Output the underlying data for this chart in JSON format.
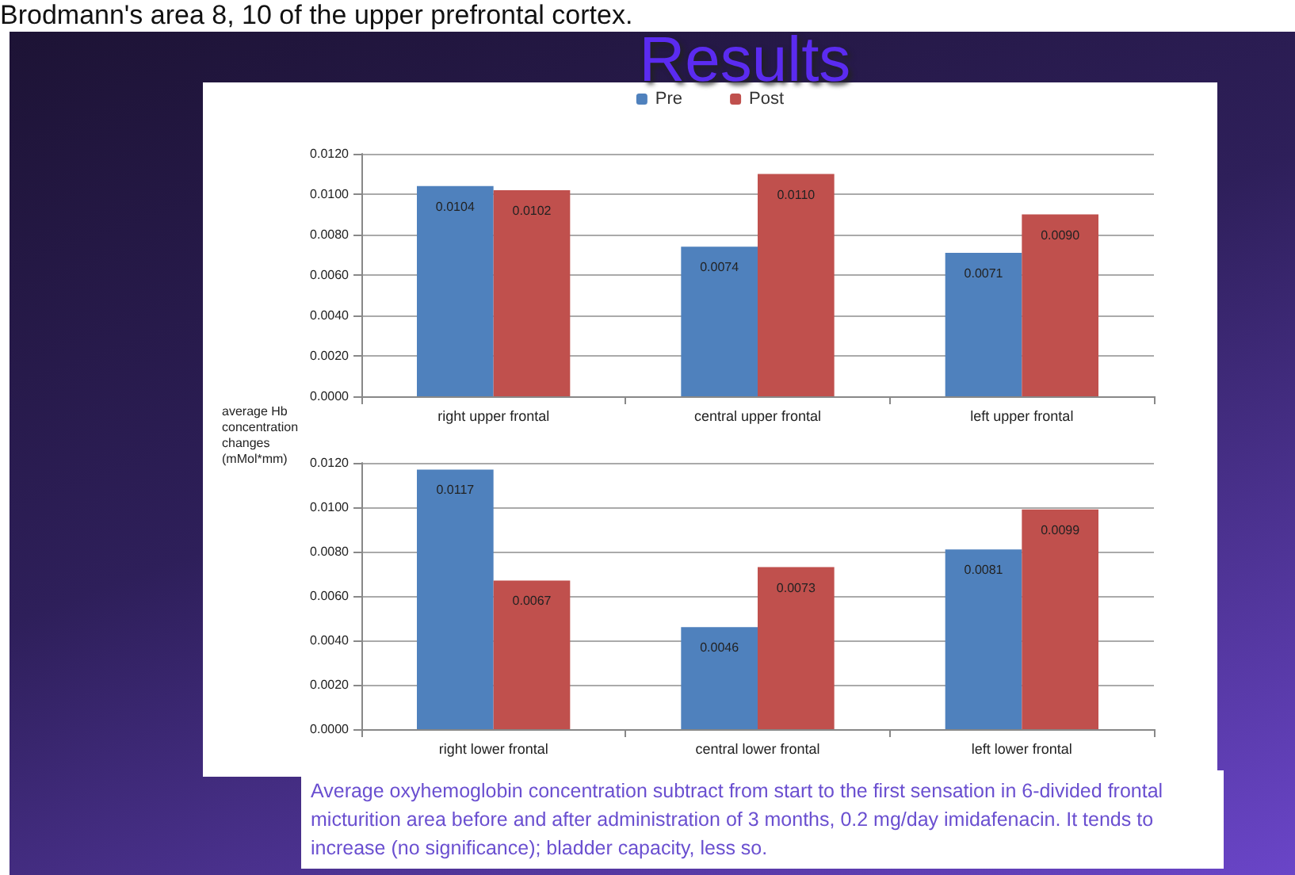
{
  "chart_data": [
    {
      "type": "bar",
      "title": "Results",
      "ylabel": "average Hb concentration changes (mMol*mm)",
      "annotations": [
        "Brodmann's area 8, 10 of the upper prefrontal cortex."
      ],
      "categories": [
        "right upper frontal",
        "central upper frontal",
        "left upper frontal"
      ],
      "series": [
        {
          "name": "Pre",
          "color": "#4f81bd",
          "values": [
            0.0104,
            0.0074,
            0.0071
          ],
          "value_labels": [
            "0.0104",
            "0.0074",
            "0.0071"
          ]
        },
        {
          "name": "Post",
          "color": "#c0504d",
          "values": [
            0.0102,
            0.011,
            0.009
          ],
          "value_labels": [
            "0.0102",
            "0.0110",
            "0.0090"
          ]
        }
      ],
      "ylim": [
        0,
        0.012
      ],
      "yticks": [
        {
          "value": 0,
          "label": "0.0000"
        },
        {
          "value": 0.002,
          "label": "0.0020"
        },
        {
          "value": 0.004,
          "label": "0.0040"
        },
        {
          "value": 0.006,
          "label": "0.0060"
        },
        {
          "value": 0.008,
          "label": "0.0080"
        },
        {
          "value": 0.01,
          "label": "0.0100"
        },
        {
          "value": 0.012,
          "label": "0.0120"
        }
      ],
      "grid": "y",
      "legend": "top"
    },
    {
      "type": "bar",
      "annotations": [
        "Average oxyhemoglobin  concentration subtract from start to the first sensation in 6-divided frontal micturition area before and after administration of 3 months, 0.2 mg/day imidafenacin.  It tends to increase (no significance); bladder capacity, less so."
      ],
      "categories": [
        "right lower frontal",
        "central lower frontal",
        "left lower frontal"
      ],
      "series": [
        {
          "color": "#4f81bd",
          "values": [
            0.0117,
            0.0046,
            0.0081
          ],
          "value_labels": [
            "0.0117",
            "0.0046",
            "0.0081"
          ]
        },
        {
          "color": "#c0504d",
          "values": [
            0.0067,
            0.0073,
            0.0099
          ],
          "value_labels": [
            "0.0067",
            "0.0073",
            "0.0099"
          ]
        }
      ],
      "ylim": [
        0,
        0.012
      ],
      "yticks": [
        {
          "value": 0,
          "label": "0.0000"
        },
        {
          "value": 0.002,
          "label": "0.0020"
        },
        {
          "value": 0.004,
          "label": "0.0040"
        },
        {
          "value": 0.006,
          "label": "0.0060"
        },
        {
          "value": 0.008,
          "label": "0.0080"
        },
        {
          "value": 0.01,
          "label": "0.0100"
        },
        {
          "value": 0.012,
          "label": "0.0120"
        }
      ],
      "grid": "y"
    }
  ]
}
